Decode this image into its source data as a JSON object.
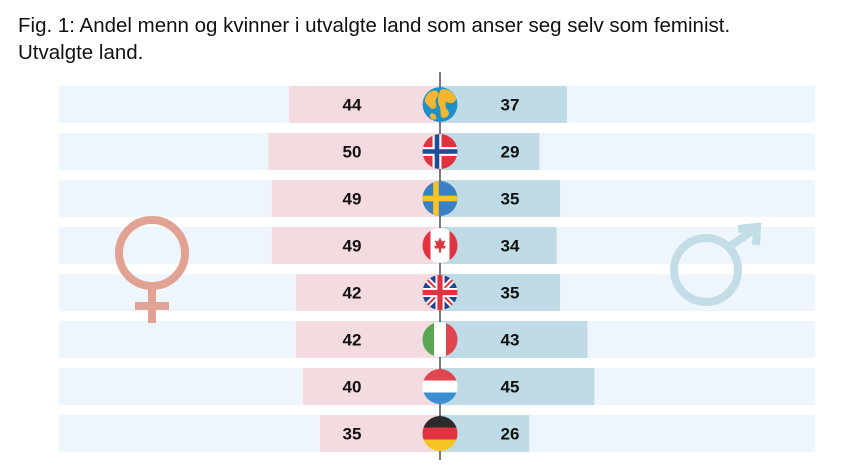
{
  "title_line1": "Fig. 1: Andel menn og kvinner i utvalgte land som anser seg selv som feminist.",
  "title_line2": "Utvalgte land.",
  "colors": {
    "row_background": "#eef5fc",
    "women_bar": "#f4dbe0",
    "men_bar": "#bedbe6",
    "center_line": "#222222",
    "female_symbol": "#e2a293",
    "male_symbol": "#c2dde6"
  },
  "icons": {
    "women": "female-symbol-icon",
    "men": "male-symbol-icon"
  },
  "chart_data": {
    "type": "bar",
    "orientation": "horizontal-diverging",
    "title": "Fig. 1: Andel menn og kvinner i utvalgte land som anser seg selv som feminist. Utvalgte land.",
    "categories": [
      "globe",
      "norway",
      "sweden",
      "canada",
      "uk",
      "italy",
      "netherlands",
      "germany"
    ],
    "series": [
      {
        "values": [
          44,
          50,
          49,
          49,
          42,
          42,
          40,
          35
        ],
        "color": "#f4dbe0",
        "side": "left",
        "symbol": "female"
      },
      {
        "values": [
          37,
          29,
          35,
          34,
          35,
          43,
          45,
          26
        ],
        "color": "#bedbe6",
        "side": "right",
        "symbol": "male"
      }
    ],
    "row_icons": [
      "globe-icon",
      "norway-flag-icon",
      "sweden-flag-icon",
      "canada-flag-icon",
      "uk-flag-icon",
      "italy-flag-icon",
      "netherlands-flag-icon",
      "germany-flag-icon"
    ],
    "xlim": [
      0,
      100
    ],
    "grid": false,
    "legend": "none"
  }
}
